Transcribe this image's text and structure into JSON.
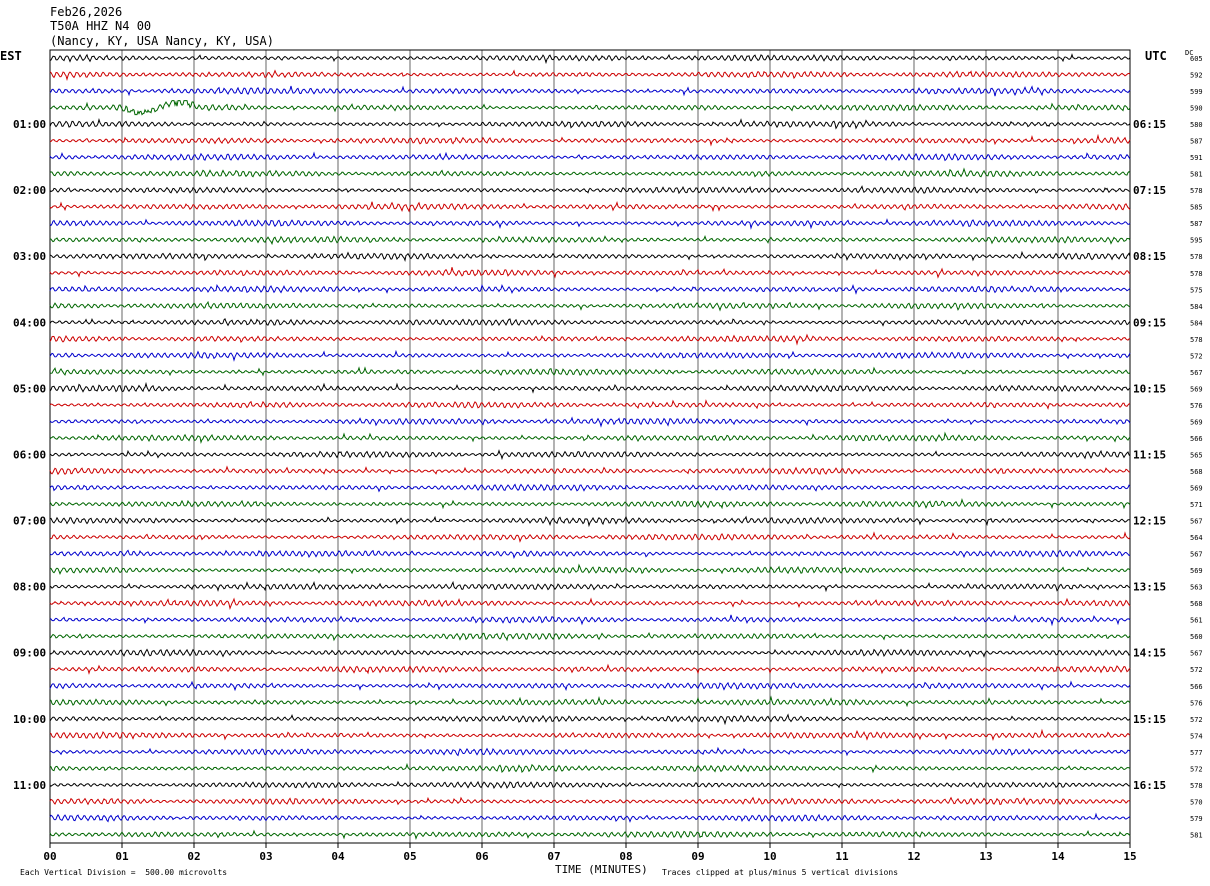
{
  "header": {
    "date": "Feb26,2026",
    "station": "T50A HHZ N4 00",
    "location": "(Nancy, KY, USA Nancy, KY, USA)"
  },
  "chart_data": {
    "type": "line",
    "title": "",
    "left_timezone": "EST",
    "right_timezone": "UTC",
    "dc_label": "DC",
    "xlabel": "TIME (MINUTES)",
    "xlim": [
      0,
      15
    ],
    "x_ticks": [
      "00",
      "01",
      "02",
      "03",
      "04",
      "05",
      "06",
      "07",
      "08",
      "09",
      "10",
      "11",
      "12",
      "13",
      "14",
      "15"
    ],
    "trace_colors": [
      "#000000",
      "#cc0000",
      "#0000cc",
      "#006600"
    ],
    "hour_labels_est": [
      "01:00",
      "02:00",
      "03:00",
      "04:00",
      "05:00",
      "06:00",
      "07:00",
      "08:00",
      "09:00",
      "10:00",
      "11:00"
    ],
    "hour_labels_utc": [
      "06:15",
      "07:15",
      "08:15",
      "09:15",
      "10:15",
      "11:15",
      "12:15",
      "13:15",
      "14:15",
      "15:15",
      "16:15"
    ],
    "dc_offsets": [
      605,
      592,
      599,
      590,
      580,
      587,
      591,
      581,
      578,
      585,
      587,
      595,
      578,
      578,
      575,
      584,
      584,
      578,
      572,
      567,
      569,
      576,
      569,
      566,
      565,
      568,
      569,
      571,
      567,
      564,
      567,
      569,
      563,
      568,
      561,
      560,
      567,
      572,
      566,
      576,
      572,
      574,
      577,
      572,
      578,
      570,
      579,
      581
    ],
    "footer_scale": "Each Vertical Division =  500.00 microvolts",
    "footer_clip": "Traces clipped at plus/minus 5 vertical divisions"
  }
}
